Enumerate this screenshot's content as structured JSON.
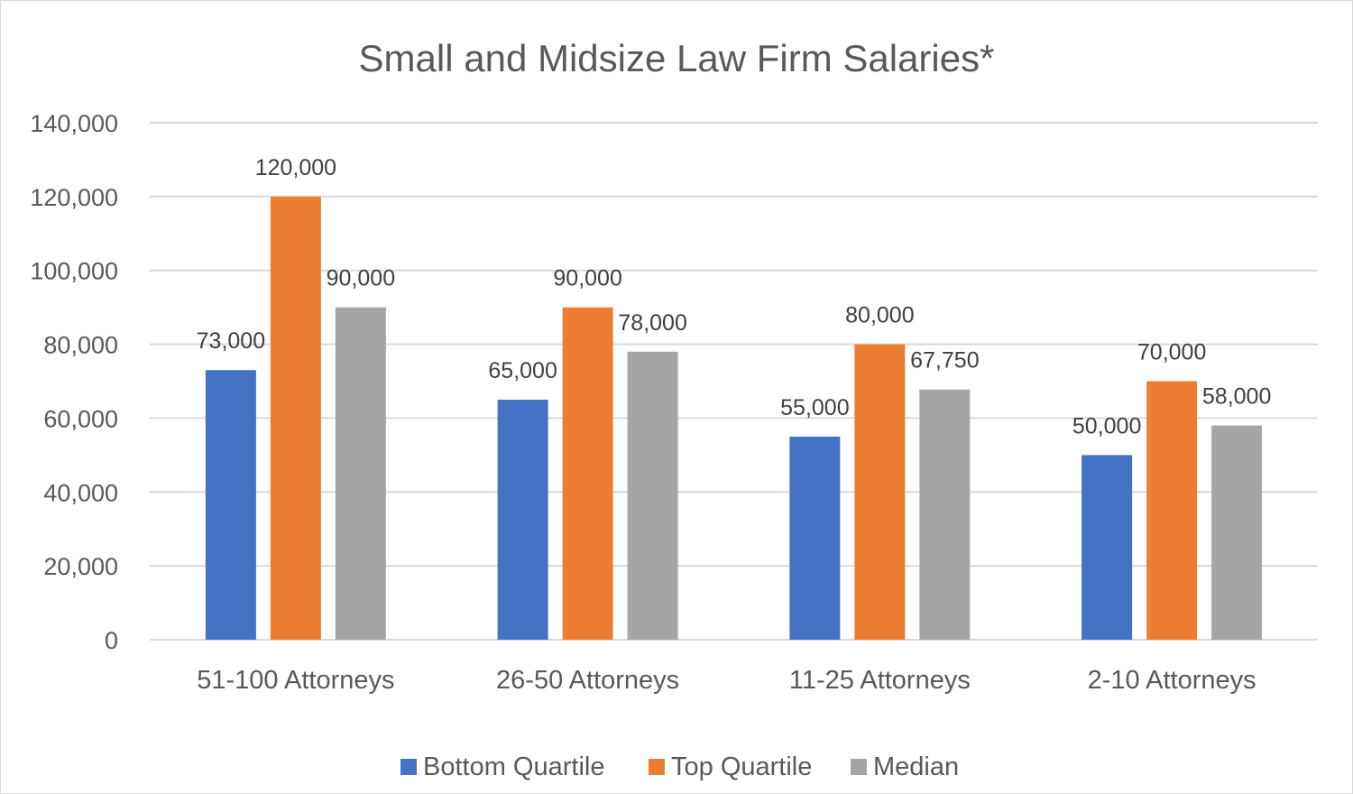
{
  "chart_data": {
    "type": "bar",
    "title": "Small and Midsize Law Firm Salaries*",
    "categories": [
      "51-100 Attorneys",
      "26-50 Attorneys",
      "11-25 Attorneys",
      "2-10 Attorneys"
    ],
    "series": [
      {
        "name": "Bottom Quartile",
        "color": "#4472c4",
        "values": [
          73000,
          65000,
          55000,
          50000
        ],
        "labels": [
          "73,000",
          "65,000",
          "55,000",
          "50,000"
        ]
      },
      {
        "name": "Top Quartile",
        "color": "#ed7d31",
        "values": [
          120000,
          90000,
          80000,
          70000
        ],
        "labels": [
          "120,000",
          "90,000",
          "80,000",
          "70,000"
        ]
      },
      {
        "name": "Median",
        "color": "#a5a5a5",
        "values": [
          90000,
          78000,
          67750,
          58000
        ],
        "labels": [
          "90,000",
          "78,000",
          "67,750",
          "58,000"
        ]
      }
    ],
    "ylim": [
      0,
      140000
    ],
    "yticks": [
      {
        "value": 0,
        "label": "0"
      },
      {
        "value": 20000,
        "label": "20,000"
      },
      {
        "value": 40000,
        "label": "40,000"
      },
      {
        "value": 60000,
        "label": "60,000"
      },
      {
        "value": 80000,
        "label": "80,000"
      },
      {
        "value": 100000,
        "label": "100,000"
      },
      {
        "value": 120000,
        "label": "120,000"
      },
      {
        "value": 140000,
        "label": "140,000"
      }
    ],
    "grid": true,
    "legend_position": "bottom"
  }
}
